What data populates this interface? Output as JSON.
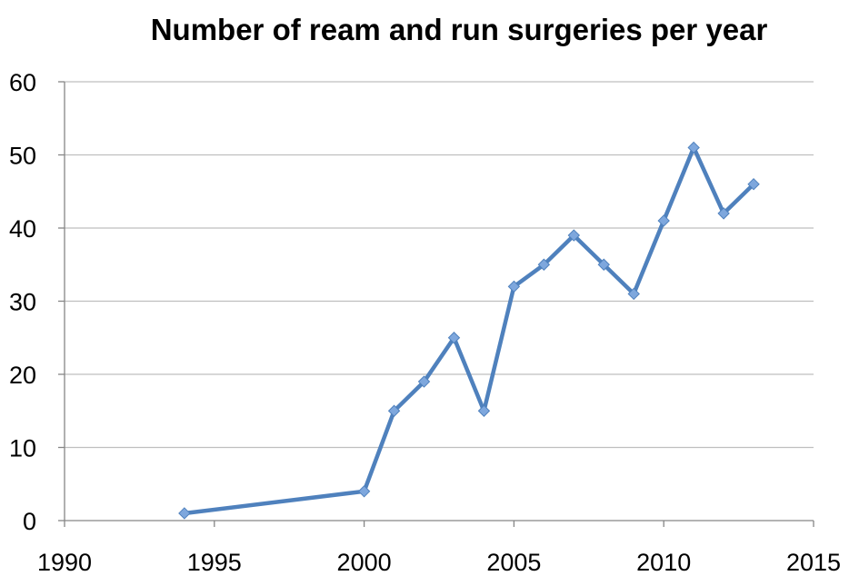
{
  "chart_data": {
    "type": "line",
    "title": "Number of ream and run surgeries per year",
    "xlabel": "",
    "ylabel": "",
    "xlim": [
      1990,
      2015
    ],
    "ylim": [
      0,
      60
    ],
    "x_ticks": [
      "1990",
      "1995",
      "2000",
      "2005",
      "2010",
      "2015"
    ],
    "y_ticks": [
      "0",
      "10",
      "20",
      "30",
      "40",
      "50",
      "60"
    ],
    "grid": "horizontal",
    "legend": "none",
    "series": [
      {
        "color": "#4f81bd",
        "marker_color": "#7ea7dd",
        "x": [
          1994,
          2000,
          2001,
          2002,
          2003,
          2004,
          2005,
          2006,
          2007,
          2008,
          2009,
          2010,
          2011,
          2012,
          2013
        ],
        "y": [
          1,
          4,
          15,
          19,
          25,
          15,
          32,
          35,
          39,
          35,
          31,
          41,
          51,
          42,
          46
        ]
      }
    ]
  }
}
